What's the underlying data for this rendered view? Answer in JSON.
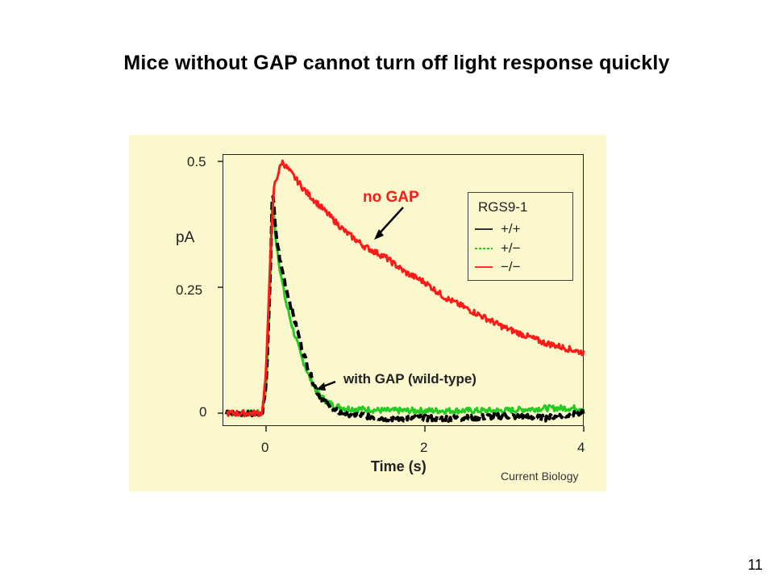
{
  "slide": {
    "title": "Mice without GAP cannot turn off light response quickly",
    "page_number": "11"
  },
  "annotations": {
    "no_gap": "no GAP",
    "with_gap": "with GAP (wild-type)",
    "credit": "Current Biology",
    "no_gap_color": "#ff1a1a"
  },
  "chart_data": {
    "type": "line",
    "title": "",
    "xlabel": "Time (s)",
    "ylabel": "pA",
    "xlim": [
      -0.5,
      4
    ],
    "ylim": [
      0,
      0.5
    ],
    "x_ticks": [
      "0",
      "2",
      "4"
    ],
    "y_ticks": [
      "0",
      "0.25",
      "0.5"
    ],
    "grid": false,
    "legend": {
      "title": "RGS9-1",
      "position": "top-right",
      "entries": [
        "+/+",
        "+/−",
        "−/−"
      ]
    },
    "series": [
      {
        "name": "+/+",
        "color": "#000000",
        "dashed": true,
        "x": [
          -0.5,
          -0.05,
          0.0,
          0.05,
          0.08,
          0.12,
          0.18,
          0.25,
          0.35,
          0.45,
          0.55,
          0.65,
          0.75,
          0.85,
          1.0,
          1.5,
          2.0,
          2.5,
          3.0,
          3.5,
          4.0
        ],
        "y": [
          0.0,
          0.0,
          0.05,
          0.25,
          0.45,
          0.36,
          0.3,
          0.25,
          0.19,
          0.13,
          0.08,
          0.04,
          0.02,
          0.005,
          0.0,
          -0.01,
          -0.01,
          -0.01,
          -0.005,
          -0.01,
          0.0
        ]
      },
      {
        "name": "+/−",
        "color": "#22cc22",
        "dashed": false,
        "x": [
          -0.5,
          -0.05,
          0.0,
          0.05,
          0.08,
          0.12,
          0.18,
          0.25,
          0.35,
          0.45,
          0.55,
          0.65,
          0.75,
          0.85,
          1.0,
          1.5,
          2.0,
          2.5,
          3.0,
          3.5,
          4.0
        ],
        "y": [
          0.0,
          0.0,
          0.05,
          0.25,
          0.43,
          0.35,
          0.28,
          0.22,
          0.16,
          0.11,
          0.07,
          0.04,
          0.025,
          0.015,
          0.01,
          0.005,
          0.005,
          0.005,
          0.005,
          0.01,
          0.01
        ]
      },
      {
        "name": "−/−",
        "color": "#ff1a1a",
        "dashed": false,
        "x": [
          -0.5,
          -0.05,
          0.0,
          0.05,
          0.1,
          0.2,
          0.3,
          0.5,
          0.75,
          1.0,
          1.25,
          1.5,
          1.75,
          2.0,
          2.25,
          2.5,
          2.75,
          3.0,
          3.25,
          3.5,
          3.75,
          4.0
        ],
        "y": [
          0.0,
          0.0,
          0.08,
          0.3,
          0.45,
          0.5,
          0.48,
          0.44,
          0.4,
          0.36,
          0.33,
          0.31,
          0.28,
          0.26,
          0.23,
          0.21,
          0.19,
          0.17,
          0.155,
          0.14,
          0.13,
          0.12
        ]
      }
    ]
  }
}
